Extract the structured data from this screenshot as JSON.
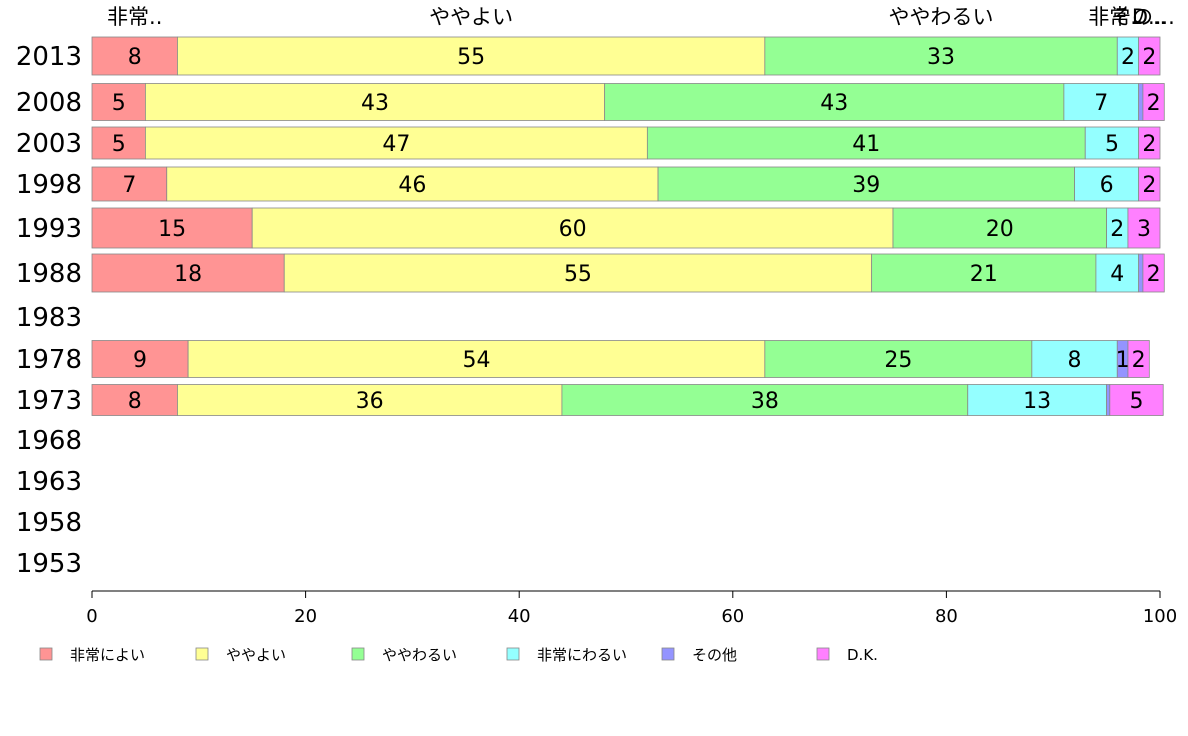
{
  "chart_data": {
    "type": "bar",
    "orientation": "horizontal",
    "stacked": true,
    "categories": [
      "2013",
      "2008",
      "2003",
      "1998",
      "1993",
      "1988",
      "1983",
      "1978",
      "1973",
      "1968",
      "1963",
      "1958",
      "1953"
    ],
    "series": [
      {
        "name": "非常によい",
        "color": "#ff9494",
        "values": [
          8,
          5,
          5,
          7,
          15,
          18,
          null,
          9,
          8,
          null,
          null,
          null,
          null
        ]
      },
      {
        "name": "ややよい",
        "color": "#ffff94",
        "values": [
          55,
          43,
          47,
          46,
          60,
          55,
          null,
          54,
          36,
          null,
          null,
          null,
          null
        ]
      },
      {
        "name": "ややわるい",
        "color": "#94ff94",
        "values": [
          33,
          43,
          41,
          39,
          20,
          21,
          null,
          25,
          38,
          null,
          null,
          null,
          null
        ]
      },
      {
        "name": "非常にわるい",
        "color": "#94ffff",
        "values": [
          2,
          7,
          5,
          6,
          2,
          4,
          null,
          8,
          13,
          null,
          null,
          null,
          null
        ]
      },
      {
        "name": "その他",
        "color": "#9494ff",
        "values": [
          0,
          0.4,
          0,
          0,
          0,
          0.4,
          null,
          1,
          0.3,
          null,
          null,
          null,
          null
        ]
      },
      {
        "name": "D.K.",
        "color": "#ff80ff",
        "values": [
          2,
          2,
          2,
          2,
          3,
          2,
          null,
          2,
          5,
          null,
          null,
          null,
          null
        ]
      }
    ],
    "value_labels": [
      [
        "8",
        "55",
        "33",
        "2",
        "",
        "2"
      ],
      [
        "5",
        "43",
        "43",
        "7",
        "",
        "2"
      ],
      [
        "5",
        "47",
        "41",
        "5",
        "",
        "2"
      ],
      [
        "7",
        "46",
        "39",
        "6",
        "",
        "2"
      ],
      [
        "15",
        "60",
        "20",
        "2",
        "",
        "3"
      ],
      [
        "18",
        "55",
        "21",
        "4",
        "",
        "2"
      ],
      [
        "",
        "",
        "",
        "",
        "",
        ""
      ],
      [
        "9",
        "54",
        "25",
        "8",
        "1",
        "2"
      ],
      [
        "8",
        "36",
        "38",
        "13",
        "",
        "5"
      ],
      [
        "",
        "",
        "",
        "",
        "",
        ""
      ],
      [
        "",
        "",
        "",
        "",
        "",
        ""
      ],
      [
        "",
        "",
        "",
        "",
        "",
        ""
      ],
      [
        "",
        "",
        "",
        "",
        "",
        ""
      ]
    ],
    "top_labels": [
      "非常..",
      "ややよい",
      "ややわるい",
      "非常..",
      "その..",
      "D...."
    ],
    "x_ticks": [
      0,
      20,
      40,
      60,
      80,
      100
    ],
    "xlim": [
      0,
      100
    ],
    "legend_position": "bottom",
    "grid": false
  }
}
